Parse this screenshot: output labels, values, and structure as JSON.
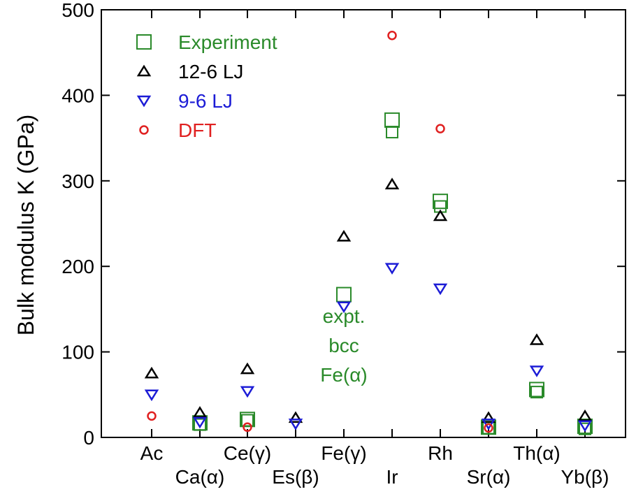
{
  "chart_data": {
    "type": "scatter",
    "ylabel": "Bulk modulus K (GPa)",
    "ylim": [
      0,
      500
    ],
    "yticks": [
      0,
      100,
      200,
      300,
      400,
      500
    ],
    "categories": [
      "Ac",
      "Ca(α)",
      "Ce(γ)",
      "Es(β)",
      "Fe(γ)",
      "Ir",
      "Rh",
      "Sr(α)",
      "Th(α)",
      "Yb(β)"
    ],
    "legend_position": "top-left",
    "colors": {
      "experiment": "#2a8a2a",
      "lj126": "#000000",
      "lj96": "#1c1cd6",
      "dft": "#e02020"
    },
    "series": [
      {
        "name": "Experiment",
        "marker": "square",
        "points": [
          {
            "cat": 1,
            "y": 15,
            "size": "small"
          },
          {
            "cat": 1,
            "y": 17,
            "size": "large"
          },
          {
            "cat": 2,
            "y": 20,
            "size": "small"
          },
          {
            "cat": 2,
            "y": 21,
            "size": "large"
          },
          {
            "cat": 4,
            "y": 167,
            "size": "large"
          },
          {
            "cat": 5,
            "y": 357,
            "size": "small"
          },
          {
            "cat": 5,
            "y": 371,
            "size": "large"
          },
          {
            "cat": 6,
            "y": 270,
            "size": "small"
          },
          {
            "cat": 6,
            "y": 276,
            "size": "large"
          },
          {
            "cat": 7,
            "y": 11,
            "size": "small"
          },
          {
            "cat": 7,
            "y": 12,
            "size": "large"
          },
          {
            "cat": 8,
            "y": 53,
            "size": "small"
          },
          {
            "cat": 8,
            "y": 56,
            "size": "large"
          },
          {
            "cat": 9,
            "y": 10,
            "size": "small"
          },
          {
            "cat": 9,
            "y": 13,
            "size": "large"
          }
        ]
      },
      {
        "name": "12-6 LJ",
        "marker": "triangle-up",
        "points": [
          {
            "cat": 0,
            "y": 75
          },
          {
            "cat": 1,
            "y": 29
          },
          {
            "cat": 2,
            "y": 80
          },
          {
            "cat": 3,
            "y": 23
          },
          {
            "cat": 4,
            "y": 235
          },
          {
            "cat": 5,
            "y": 296
          },
          {
            "cat": 6,
            "y": 259
          },
          {
            "cat": 7,
            "y": 23
          },
          {
            "cat": 8,
            "y": 114
          },
          {
            "cat": 9,
            "y": 25
          }
        ]
      },
      {
        "name": "9-6 LJ",
        "marker": "triangle-down",
        "points": [
          {
            "cat": 0,
            "y": 50
          },
          {
            "cat": 1,
            "y": 18
          },
          {
            "cat": 2,
            "y": 54
          },
          {
            "cat": 3,
            "y": 16
          },
          {
            "cat": 4,
            "y": 153
          },
          {
            "cat": 5,
            "y": 198
          },
          {
            "cat": 6,
            "y": 174
          },
          {
            "cat": 7,
            "y": 16
          },
          {
            "cat": 8,
            "y": 78
          },
          {
            "cat": 9,
            "y": 14
          }
        ]
      },
      {
        "name": "DFT",
        "marker": "circle",
        "points": [
          {
            "cat": 0,
            "y": 25
          },
          {
            "cat": 2,
            "y": 12
          },
          {
            "cat": 5,
            "y": 470
          },
          {
            "cat": 6,
            "y": 361
          },
          {
            "cat": 7,
            "y": 11
          }
        ]
      }
    ],
    "annotations": [
      {
        "lines": [
          "expt.",
          "bcc",
          "Fe(α)"
        ],
        "cat": 4,
        "y": 134,
        "color_key": "experiment"
      }
    ]
  }
}
